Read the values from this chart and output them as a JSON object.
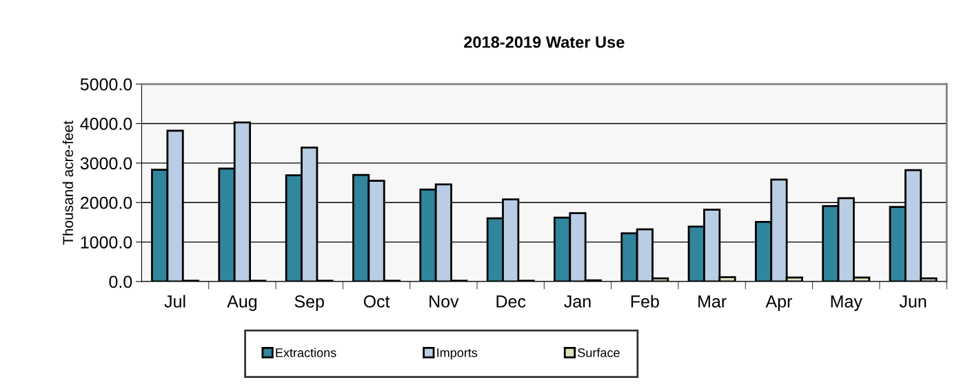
{
  "chart_data": {
    "type": "bar",
    "title": "2018-2019 Water Use",
    "ylabel": "Thousand acre-feet",
    "categories": [
      "Jul",
      "Aug",
      "Sep",
      "Oct",
      "Nov",
      "Dec",
      "Jan",
      "Feb",
      "Mar",
      "Apr",
      "May",
      "Jun"
    ],
    "series": [
      {
        "name": "Extractions",
        "color": "#31859c",
        "values": [
          2830,
          2860,
          2690,
          2700,
          2330,
          1600,
          1620,
          1220,
          1390,
          1510,
          1910,
          1890
        ]
      },
      {
        "name": "Imports",
        "color": "#b9cde5",
        "values": [
          3820,
          4030,
          3390,
          2550,
          2460,
          2080,
          1730,
          1320,
          1820,
          2580,
          2110,
          2820
        ]
      },
      {
        "name": "Surface",
        "color": "#d7e4bd",
        "values": [
          20,
          20,
          20,
          20,
          20,
          20,
          30,
          80,
          110,
          100,
          100,
          80
        ]
      }
    ],
    "ylim": [
      0,
      5000
    ],
    "yticks": [
      {
        "value": 0,
        "label": "0.0"
      },
      {
        "value": 1000,
        "label": "1000.0"
      },
      {
        "value": 2000,
        "label": "2000.0"
      },
      {
        "value": 3000,
        "label": "3000.0"
      },
      {
        "value": 4000,
        "label": "4000.0"
      },
      {
        "value": 5000,
        "label": "5000.0"
      }
    ],
    "grid": "y",
    "legend": "bottom"
  }
}
